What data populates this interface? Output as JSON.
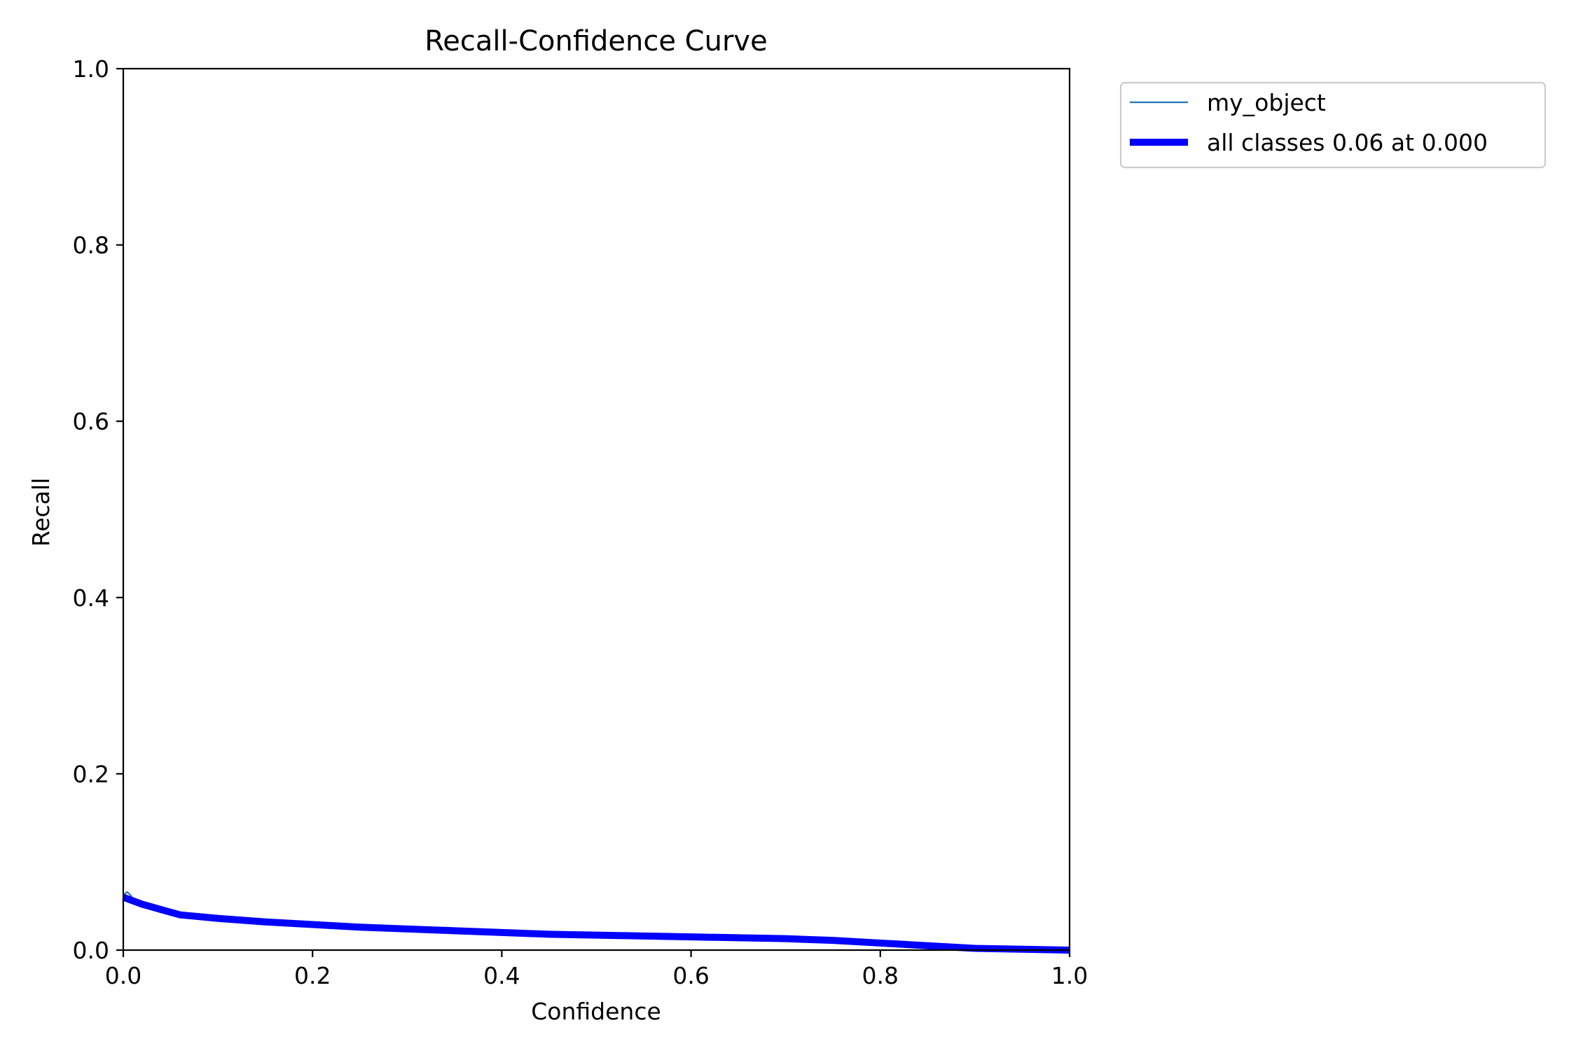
{
  "chart_data": {
    "type": "line",
    "title": "Recall-Confidence Curve",
    "xlabel": "Confidence",
    "ylabel": "Recall",
    "xlim": [
      0.0,
      1.0
    ],
    "ylim": [
      0.0,
      1.0
    ],
    "x_ticks": [
      "0.0",
      "0.2",
      "0.4",
      "0.6",
      "0.8",
      "1.0"
    ],
    "y_ticks": [
      "0.0",
      "0.2",
      "0.4",
      "0.6",
      "0.8",
      "1.0"
    ],
    "grid": false,
    "legend_position": "outside-top-right",
    "series": [
      {
        "name": "my_object",
        "color": "#1f77b4",
        "x": [
          0.0,
          0.004,
          0.008,
          0.012,
          0.02,
          0.03,
          0.04,
          0.05,
          0.06,
          0.08,
          0.1,
          0.15,
          0.2,
          0.25,
          0.3,
          0.35,
          0.4,
          0.45,
          0.5,
          0.55,
          0.6,
          0.65,
          0.7,
          0.75,
          0.8,
          0.85,
          0.9,
          0.95,
          1.0
        ],
        "y": [
          0.062,
          0.066,
          0.062,
          0.054,
          0.05,
          0.047,
          0.045,
          0.043,
          0.04,
          0.038,
          0.036,
          0.032,
          0.029,
          0.026,
          0.024,
          0.022,
          0.02,
          0.018,
          0.017,
          0.016,
          0.015,
          0.014,
          0.013,
          0.011,
          0.008,
          0.005,
          0.002,
          0.001,
          0.0
        ]
      },
      {
        "name": "all classes 0.06 at 0.000",
        "color": "#0000ff",
        "x": [
          0.0,
          0.01,
          0.02,
          0.03,
          0.04,
          0.05,
          0.06,
          0.08,
          0.1,
          0.15,
          0.2,
          0.25,
          0.3,
          0.35,
          0.4,
          0.45,
          0.5,
          0.55,
          0.6,
          0.65,
          0.7,
          0.75,
          0.8,
          0.85,
          0.9,
          0.95,
          1.0
        ],
        "y": [
          0.06,
          0.056,
          0.052,
          0.049,
          0.046,
          0.043,
          0.04,
          0.038,
          0.036,
          0.032,
          0.029,
          0.026,
          0.024,
          0.022,
          0.02,
          0.018,
          0.017,
          0.016,
          0.015,
          0.014,
          0.013,
          0.011,
          0.008,
          0.005,
          0.002,
          0.001,
          0.0
        ]
      }
    ]
  }
}
